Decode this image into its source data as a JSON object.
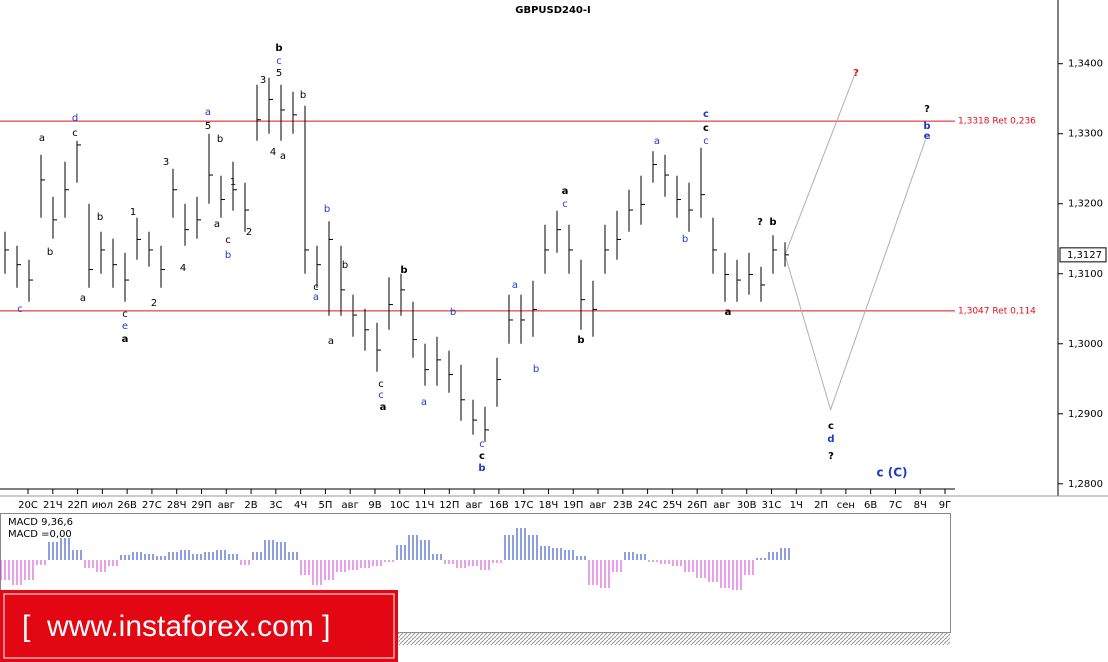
{
  "chart_data": {
    "type": "ohlc",
    "title": "GBPUSD240-I",
    "x_labels": [
      "20С",
      "21Ч",
      "22П",
      "июл",
      "26В",
      "27С",
      "28Ч",
      "29П",
      "авг",
      "2В",
      "3С",
      "4Ч",
      "5П",
      "авг",
      "9В",
      "10С",
      "11Ч",
      "12П",
      "авг",
      "16В",
      "17С",
      "18Ч",
      "19П",
      "авг",
      "23В",
      "24С",
      "25Ч",
      "26П",
      "авг",
      "30В",
      "31С",
      "1Ч",
      "2П",
      "сен",
      "6В",
      "7С",
      "8Ч",
      "9Г"
    ],
    "high": [
      1.316,
      1.314,
      1.312,
      1.327,
      1.321,
      1.326,
      1.329,
      1.32,
      1.316,
      1.315,
      1.313,
      1.318,
      1.316,
      1.314,
      1.325,
      1.32,
      1.321,
      1.33,
      1.324,
      1.326,
      1.323,
      1.337,
      1.338,
      1.337,
      1.336,
      1.334,
      1.314,
      1.3175,
      1.314,
      1.307,
      1.305,
      1.303,
      1.3095,
      1.31,
      1.306,
      1.3,
      1.301,
      1.299,
      1.297,
      1.292,
      1.291,
      1.298,
      1.307,
      1.307,
      1.309,
      1.317,
      1.319,
      1.317,
      1.312,
      1.309,
      1.317,
      1.319,
      1.322,
      1.324,
      1.3275,
      1.327,
      1.324,
      1.323,
      1.328,
      1.318,
      1.313,
      1.312,
      1.313,
      1.311,
      1.3155,
      1.3145
    ],
    "low": [
      1.31,
      1.308,
      1.306,
      1.318,
      1.315,
      1.318,
      1.323,
      1.308,
      1.31,
      1.308,
      1.306,
      1.312,
      1.311,
      1.308,
      1.318,
      1.314,
      1.315,
      1.32,
      1.318,
      1.319,
      1.316,
      1.329,
      1.33,
      1.329,
      1.33,
      1.31,
      1.308,
      1.304,
      1.304,
      1.301,
      1.299,
      1.296,
      1.302,
      1.304,
      1.298,
      1.294,
      1.294,
      1.293,
      1.289,
      1.287,
      1.286,
      1.291,
      1.3,
      1.3,
      1.301,
      1.31,
      1.313,
      1.31,
      1.302,
      1.301,
      1.31,
      1.312,
      1.316,
      1.317,
      1.323,
      1.321,
      1.318,
      1.316,
      1.318,
      1.31,
      1.306,
      1.306,
      1.307,
      1.306,
      1.31,
      1.311
    ],
    "close": [
      1.3134,
      1.3113,
      1.3091,
      1.3234,
      1.3177,
      1.322,
      1.3284,
      1.3106,
      1.3134,
      1.3113,
      1.3091,
      1.3149,
      1.3134,
      1.3106,
      1.322,
      1.3163,
      1.3177,
      1.3241,
      1.3206,
      1.322,
      1.3191,
      1.332,
      1.3349,
      1.3334,
      1.3327,
      1.3134,
      1.3113,
      1.3149,
      1.3077,
      1.3041,
      1.302,
      1.2991,
      1.3056,
      1.3077,
      1.3006,
      1.2963,
      1.2977,
      1.2956,
      1.292,
      1.2891,
      1.2877,
      1.2949,
      1.3034,
      1.3034,
      1.3049,
      1.3134,
      1.3163,
      1.3134,
      1.3063,
      1.3049,
      1.3134,
      1.3149,
      1.3191,
      1.3199,
      1.3256,
      1.3241,
      1.3206,
      1.3191,
      1.3213,
      1.3134,
      1.3099,
      1.3091,
      1.3099,
      1.3084,
      1.3134,
      1.3127
    ],
    "color": "#000000",
    "ylim": [
      1.2784,
      1.3491
    ],
    "yticks": [
      {
        "value": 1.28,
        "label": "1,2800"
      },
      {
        "value": 1.29,
        "label": "1,2900"
      },
      {
        "value": 1.3,
        "label": "1,3000"
      },
      {
        "value": 1.31,
        "label": "1,3100"
      },
      {
        "value": 1.32,
        "label": "1,3200"
      },
      {
        "value": 1.33,
        "label": "1,3300"
      },
      {
        "value": 1.34,
        "label": "1,3400"
      }
    ],
    "current_price": {
      "value": 1.3127,
      "label": "1,3127"
    },
    "levels": [
      {
        "value": 1.3318,
        "label": "1,3318 Ret 0,236",
        "color": "#e0101b"
      },
      {
        "value": 1.3047,
        "label": "1,3047 Ret 0,114",
        "color": "#e0101b"
      }
    ],
    "projections": [
      {
        "x": [
          65,
          70.8
        ],
        "values": [
          1.3127,
          1.3384
        ]
      },
      {
        "x": [
          65,
          68.8,
          76.7
        ],
        "values": [
          1.3127,
          1.2906,
          1.3291
        ]
      }
    ],
    "projection_color": "#b0b0b0",
    "wave_labels": [
      {
        "text": "b",
        "color": "#000",
        "bold": true
      },
      {
        "text": "c",
        "color": "#1a3cc8"
      },
      {
        "text": "5",
        "color": "#000"
      },
      {
        "text": "3",
        "color": "#000"
      },
      {
        "text": "b",
        "color": "#000"
      },
      {
        "text": "4",
        "color": "#000"
      },
      {
        "text": "a",
        "color": "#000"
      },
      {
        "text": "d",
        "color": "#1a3cc8"
      },
      {
        "text": "c",
        "color": "#000"
      },
      {
        "text": "a",
        "color": "#000"
      },
      {
        "text": "b",
        "color": "#000"
      },
      {
        "text": "b",
        "color": "#000"
      },
      {
        "text": "1",
        "color": "#000"
      },
      {
        "text": "c",
        "color": "#000"
      },
      {
        "text": "e",
        "color": "#1a3cc8"
      },
      {
        "text": "a",
        "color": "#000",
        "bold": true
      },
      {
        "text": "a",
        "color": "#000"
      },
      {
        "text": "c",
        "color": "#1a3cc8"
      },
      {
        "text": "2",
        "color": "#000"
      },
      {
        "text": "4",
        "color": "#000"
      },
      {
        "text": "3",
        "color": "#000"
      },
      {
        "text": "a",
        "color": "#1a3cc8"
      },
      {
        "text": "5",
        "color": "#000"
      },
      {
        "text": "b",
        "color": "#000"
      },
      {
        "text": "1",
        "color": "#000"
      },
      {
        "text": "a",
        "color": "#000"
      },
      {
        "text": "c",
        "color": "#000"
      },
      {
        "text": "b",
        "color": "#1a3cc8"
      },
      {
        "text": "2",
        "color": "#000"
      },
      {
        "text": "b",
        "color": "#1a3cc8"
      },
      {
        "text": "b",
        "color": "#000"
      },
      {
        "text": "c",
        "color": "#000"
      },
      {
        "text": "a",
        "color": "#1a3cc8"
      },
      {
        "text": "a",
        "color": "#000"
      },
      {
        "text": "b",
        "color": "#000",
        "bold": true
      },
      {
        "text": "c",
        "color": "#000"
      },
      {
        "text": "c",
        "color": "#1a3cc8"
      },
      {
        "text": "a",
        "color": "#000",
        "bold": true
      },
      {
        "text": "a",
        "color": "#1a3cc8"
      },
      {
        "text": "b",
        "color": "#1a3cc8"
      },
      {
        "text": "c",
        "color": "#1a3cc8"
      },
      {
        "text": "c",
        "color": "#000",
        "bold": true
      },
      {
        "text": "b",
        "color": "#1a3cc8",
        "bold": true
      },
      {
        "text": "a",
        "color": "#1a3cc8"
      },
      {
        "text": "b",
        "color": "#1a3cc8"
      },
      {
        "text": "a",
        "color": "#000",
        "bold": true
      },
      {
        "text": "c",
        "color": "#1a3cc8"
      },
      {
        "text": "b",
        "color": "#000",
        "bold": true
      },
      {
        "text": "a",
        "color": "#1a3cc8"
      },
      {
        "text": "b",
        "color": "#1a3cc8"
      },
      {
        "text": "c",
        "color": "#1a3cc8",
        "bold": true
      },
      {
        "text": "c",
        "color": "#000",
        "bold": true
      },
      {
        "text": "c",
        "color": "#1a3cc8"
      },
      {
        "text": "?",
        "color": "#000",
        "bold": true
      },
      {
        "text": "b",
        "color": "#000",
        "bold": true
      },
      {
        "text": "a",
        "color": "#000",
        "bold": true
      },
      {
        "text": "?",
        "color": "#e0101b",
        "bold": true
      },
      {
        "text": "?",
        "color": "#000",
        "bold": true
      },
      {
        "text": "b",
        "color": "#1a3cc8",
        "bold": true
      },
      {
        "text": "e",
        "color": "#1a3cc8",
        "bold": true
      },
      {
        "text": "c",
        "color": "#000",
        "bold": true
      },
      {
        "text": "d",
        "color": "#1a3cc8",
        "bold": true
      },
      {
        "text": "?",
        "color": "#000",
        "bold": true
      },
      {
        "text": "c (C)",
        "color": "#1a3cc8",
        "bold": true
      }
    ],
    "macd": {
      "title": "MACD 9,36,6",
      "value_text": "MACD =0,00",
      "values": [
        -20,
        -25,
        -20,
        -5,
        18,
        22,
        10,
        -8,
        -12,
        -6,
        5,
        8,
        6,
        4,
        8,
        10,
        6,
        8,
        10,
        6,
        -5,
        8,
        20,
        18,
        8,
        -15,
        -25,
        -20,
        -12,
        -10,
        -8,
        -6,
        -2,
        15,
        25,
        20,
        6,
        -4,
        -8,
        -6,
        -10,
        -3,
        25,
        32,
        25,
        14,
        12,
        10,
        4,
        -25,
        -28,
        -12,
        8,
        6,
        -2,
        -4,
        -6,
        -12,
        -18,
        -22,
        -28,
        -30,
        -15,
        2,
        8,
        12
      ],
      "ylim": [
        -72,
        47
      ],
      "positive_color": "#1a3cc8",
      "negative_color": "#d040d0"
    },
    "watermark": "[  www.instaforex.com ]"
  }
}
